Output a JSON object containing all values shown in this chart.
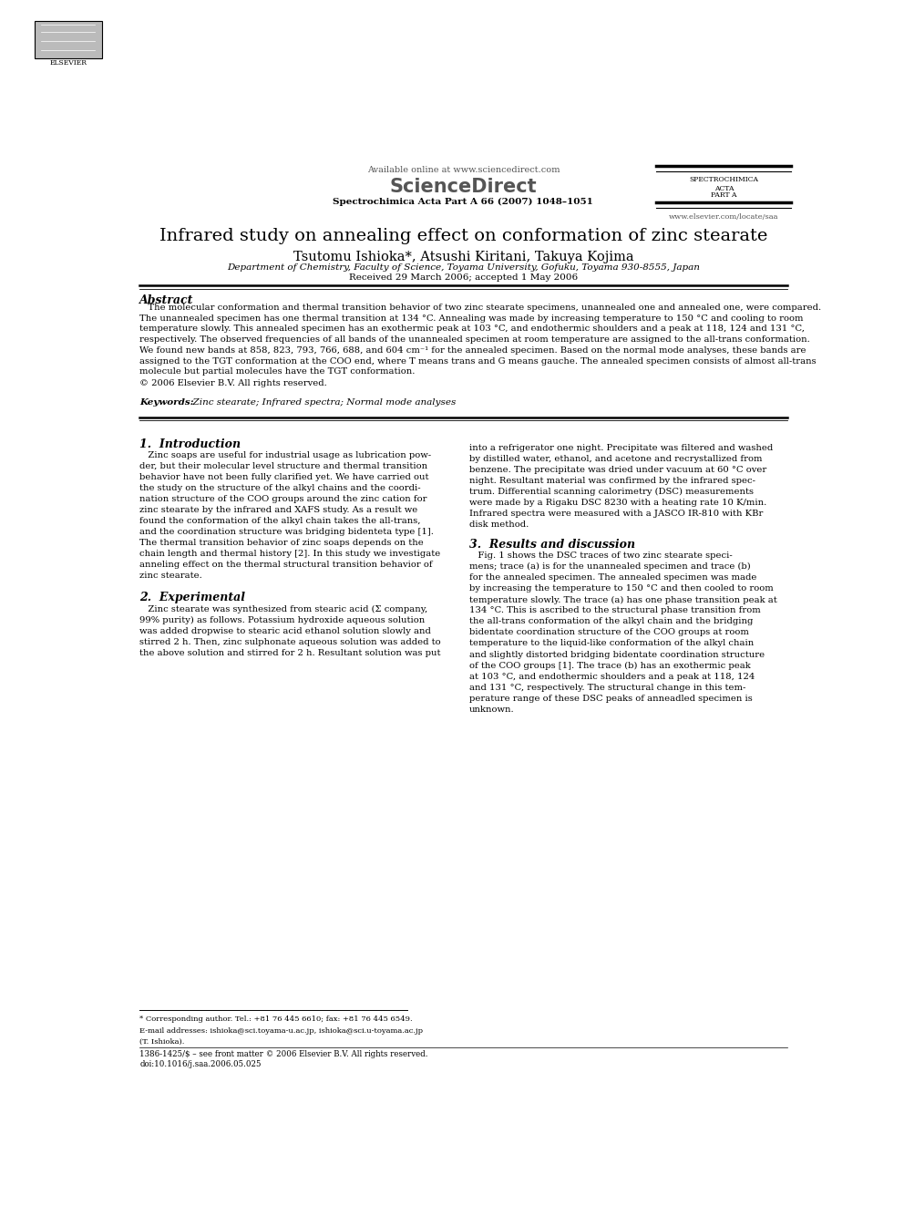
{
  "title": "Infrared study on annealing effect on conformation of zinc stearate",
  "authors": "Tsutomu Ishioka*, Atsushi Kiritani, Takuya Kojima",
  "affiliation": "Department of Chemistry, Faculty of Science, Toyama University, Gofuku, Toyama 930-8555, Japan",
  "received": "Received 29 March 2006; accepted 1 May 2006",
  "journal_header": "Available online at www.sciencedirect.com",
  "journal_name": "ScienceDirect",
  "journal_citation": "Spectrochimica Acta Part A 66 (2007) 1048–1051",
  "journal_abbrev_line1": "SPECTROCHIMICA",
  "journal_abbrev_line2": "ACTA",
  "journal_abbrev_line3": "PART A",
  "journal_url": "www.elsevier.com/locate/saa",
  "elsevier_text": "ELSEVIER",
  "abstract_title": "Abstract",
  "copyright": "© 2006 Elsevier B.V. All rights reserved.",
  "keywords_label": "Keywords:",
  "keywords": "  Zinc stearate; Infrared spectra; Normal mode analyses",
  "section1_title": "1.  Introduction",
  "section2_title": "2.  Experimental",
  "section3_title": "3.  Results and discussion",
  "footnote1": "* Corresponding author. Tel.: +81 76 445 6610; fax: +81 76 445 6549.",
  "footnote2": "E-mail addresses: ishioka@sci.toyama-u.ac.jp, ishioka@sci.u-toyama.ac.jp",
  "footnote3": "(T. Ishioka).",
  "footnote4": "1386-1425/$ – see front matter © 2006 Elsevier B.V. All rights reserved.",
  "footnote5": "doi:10.1016/j.saa.2006.05.025",
  "bg_color": "#ffffff",
  "text_color": "#000000",
  "page_width": 9.92,
  "page_height": 13.23,
  "abstract_lines": [
    "   The molecular conformation and thermal transition behavior of two zinc stearate specimens, unannealed one and annealed one, were compared.",
    "The unannealed specimen has one thermal transition at 134 °C. Annealing was made by increasing temperature to 150 °C and cooling to room",
    "temperature slowly. This annealed specimen has an exothermic peak at 103 °C, and endothermic shoulders and a peak at 118, 124 and 131 °C,",
    "respectively. The observed frequencies of all bands of the unannealed specimen at room temperature are assigned to the all-trans conformation.",
    "We found new bands at 858, 823, 793, 766, 688, and 604 cm⁻¹ for the annealed specimen. Based on the normal mode analyses, these bands are",
    "assigned to the TGT conformation at the COO end, where T means trans and G means gauche. The annealed specimen consists of almost all-trans",
    "molecule but partial molecules have the TGT conformation."
  ],
  "intro_lines_left": [
    "   Zinc soaps are useful for industrial usage as lubrication pow-",
    "der, but their molecular level structure and thermal transition",
    "behavior have not been fully clarified yet. We have carried out",
    "the study on the structure of the alkyl chains and the coordi-",
    "nation structure of the COO groups around the zinc cation for",
    "zinc stearate by the infrared and XAFS study. As a result we",
    "found the conformation of the alkyl chain takes the all-trans,",
    "and the coordination structure was bridging bidenteta type [1].",
    "The thermal transition behavior of zinc soaps depends on the",
    "chain length and thermal history [2]. In this study we investigate",
    "anneling effect on the thermal structural transition behavior of",
    "zinc stearate."
  ],
  "exp_lines_left": [
    "   Zinc stearate was synthesized from stearic acid (Σ company,",
    "99% purity) as follows. Potassium hydroxide aqueous solution",
    "was added dropwise to stearic acid ethanol solution slowly and",
    "stirred 2 h. Then, zinc sulphonate aqueous solution was added to",
    "the above solution and stirred for 2 h. Resultant solution was put"
  ],
  "right_col_lines": [
    "into a refrigerator one night. Precipitate was filtered and washed",
    "by distilled water, ethanol, and acetone and recrystallized from",
    "benzene. The precipitate was dried under vacuum at 60 °C over",
    "night. Resultant material was confirmed by the infrared spec-",
    "trum. Differential scanning calorimetry (DSC) measurements",
    "were made by a Rigaku DSC 8230 with a heating rate 10 K/min.",
    "Infrared spectra were measured with a JASCO IR-810 with KBr",
    "disk method."
  ],
  "disc_lines": [
    "   Fig. 1 shows the DSC traces of two zinc stearate speci-",
    "mens; trace (a) is for the unannealed specimen and trace (b)",
    "for the annealed specimen. The annealed specimen was made",
    "by increasing the temperature to 150 °C and then cooled to room",
    "temperature slowly. The trace (a) has one phase transition peak at",
    "134 °C. This is ascribed to the structural phase transition from",
    "the all-trans conformation of the alkyl chain and the bridging",
    "bidentate coordination structure of the COO groups at room",
    "temperature to the liquid-like conformation of the alkyl chain",
    "and slightly distorted bridging bidentate coordination structure",
    "of the COO groups [1]. The trace (b) has an exothermic peak",
    "at 103 °C, and endothermic shoulders and a peak at 118, 124",
    "and 131 °C, respectively. The structural change in this tem-",
    "perature range of these DSC peaks of anneadled specimen is",
    "unknown."
  ]
}
